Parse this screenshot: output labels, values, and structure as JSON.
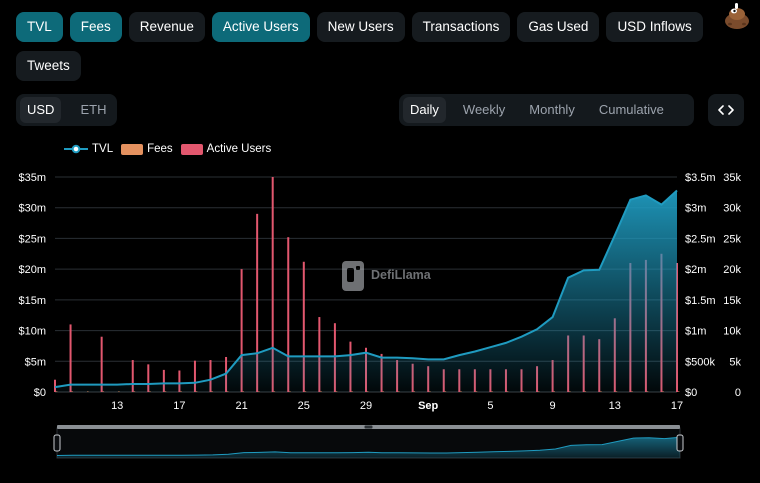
{
  "metric_tabs": [
    {
      "label": "TVL",
      "active": true
    },
    {
      "label": "Fees",
      "active": true
    },
    {
      "label": "Revenue",
      "active": false
    },
    {
      "label": "Active Users",
      "active": true
    },
    {
      "label": "New Users",
      "active": false
    },
    {
      "label": "Transactions",
      "active": false
    },
    {
      "label": "Gas Used",
      "active": false
    },
    {
      "label": "USD Inflows",
      "active": false
    },
    {
      "label": "Tweets",
      "active": false
    }
  ],
  "denomination": {
    "options": [
      "USD",
      "ETH"
    ],
    "selected": "USD"
  },
  "groupby": {
    "options": [
      "Daily",
      "Weekly",
      "Monthly",
      "Cumulative"
    ],
    "selected": "Daily"
  },
  "embed_icon": "code-icon",
  "watermark": "DefiLlama",
  "colors": {
    "tvl": "#1f9bc0",
    "fees": "#e4915f",
    "active_users": "#e2576e",
    "tab_active": "#0d6a79"
  },
  "chart_data": {
    "type": "line+bar",
    "legend": [
      {
        "name": "TVL",
        "type": "line",
        "color": "#1f9bc0"
      },
      {
        "name": "Fees",
        "type": "bar",
        "color": "#e4915f"
      },
      {
        "name": "Active Users",
        "type": "bar",
        "color": "#e2576e"
      }
    ],
    "legend_placement": "top-left",
    "grid": true,
    "x_tick_labels": [
      "13",
      "17",
      "21",
      "25",
      "29",
      "Sep",
      "5",
      "9",
      "13",
      "17"
    ],
    "y_left": {
      "ticks": [
        "$0",
        "$5m",
        "$10m",
        "$15m",
        "$20m",
        "$25m",
        "$30m",
        "$35m"
      ],
      "range": [
        0,
        35000000
      ]
    },
    "y_right_tvl": {
      "ticks": [
        "$0",
        "$500k",
        "$1m",
        "$1.5m",
        "$2m",
        "$2.5m",
        "$3m",
        "$3.5m"
      ],
      "range": [
        0,
        3500000
      ]
    },
    "y_right_users": {
      "ticks": [
        "0",
        "5k",
        "10k",
        "15k",
        "20k",
        "25k",
        "30k",
        "35k"
      ],
      "range": [
        0,
        35000
      ]
    },
    "days": 41,
    "tvl": [
      80000,
      120000,
      120000,
      120000,
      120000,
      130000,
      130000,
      140000,
      140000,
      150000,
      200000,
      300000,
      600000,
      630000,
      720000,
      580000,
      580000,
      580000,
      580000,
      600000,
      640000,
      560000,
      560000,
      550000,
      530000,
      530000,
      600000,
      660000,
      730000,
      800000,
      900000,
      1020000,
      1220000,
      1860000,
      1980000,
      1990000,
      2550000,
      3130000,
      3200000,
      3050000,
      3280000
    ],
    "active_users": [
      2000,
      11000,
      0,
      9000,
      0,
      5200,
      4500,
      3600,
      3500,
      5100,
      5200,
      5700,
      20000,
      29000,
      35000,
      25200,
      21200,
      12200,
      11200,
      8200,
      7200,
      6200,
      5200,
      4600,
      4200,
      3700,
      3700,
      3700,
      3700,
      3700,
      3700,
      4200,
      5200,
      9200,
      9200,
      8600,
      12000,
      21000,
      21500,
      22500,
      21000
    ],
    "fees": [
      100,
      80,
      60,
      60,
      50,
      60,
      60,
      60,
      60,
      70,
      80,
      500,
      600,
      500,
      2000,
      900,
      700,
      600,
      600,
      500,
      500,
      400,
      400,
      350,
      350,
      350,
      350,
      380,
      400,
      420,
      460,
      520,
      600,
      4000,
      3500,
      3200,
      3300,
      3500,
      3400,
      3600,
      3000
    ],
    "brush_range": [
      0,
      1
    ]
  }
}
